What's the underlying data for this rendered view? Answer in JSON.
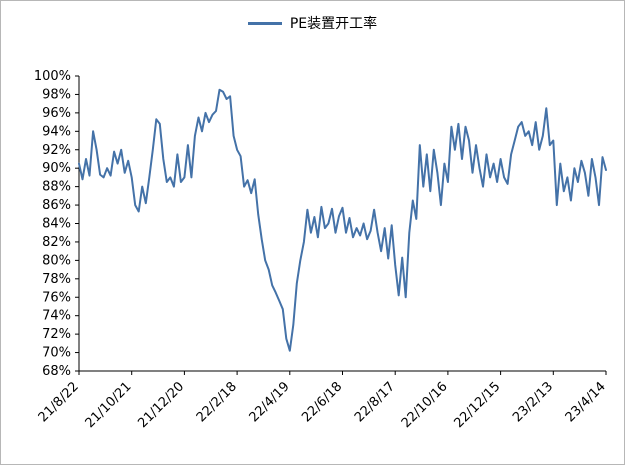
{
  "legend": {
    "label": "PE装置开工率"
  },
  "chart_data": {
    "type": "line",
    "title": "PE装置开工率",
    "series_name": "PE装置开工率",
    "series_color": "#4472A8",
    "axis_color": "#000000",
    "grid": false,
    "legend_position": "top-center",
    "ylim": [
      68,
      100
    ],
    "ytick_step": 2,
    "ytick_suffix": "%",
    "x_tick_labels": [
      "21/8/22",
      "21/10/21",
      "21/12/20",
      "22/2/18",
      "22/4/19",
      "22/6/18",
      "22/8/17",
      "22/10/16",
      "22/12/15",
      "23/2/13",
      "23/4/14"
    ],
    "x_tick_indices": [
      0,
      15,
      30,
      45,
      60,
      75,
      90,
      105,
      120,
      135,
      150
    ],
    "values": [
      90.5,
      88.8,
      91.0,
      89.2,
      94.0,
      92.0,
      89.3,
      89.0,
      90.0,
      89.2,
      91.8,
      90.5,
      92.0,
      89.5,
      90.8,
      89.0,
      86.0,
      85.3,
      88.0,
      86.2,
      89.0,
      92.0,
      95.3,
      94.8,
      91.0,
      88.5,
      89.0,
      88.0,
      91.5,
      88.5,
      89.0,
      92.5,
      89.0,
      93.5,
      95.5,
      94.0,
      96.0,
      95.0,
      95.8,
      96.2,
      98.5,
      98.3,
      97.5,
      97.8,
      93.5,
      92.0,
      91.3,
      88.0,
      88.7,
      87.3,
      88.8,
      85.0,
      82.3,
      80.0,
      79.0,
      77.3,
      76.5,
      75.6,
      74.7,
      71.5,
      70.2,
      73.0,
      77.5,
      80.0,
      82.0,
      85.5,
      83.0,
      84.7,
      82.5,
      85.8,
      83.5,
      84.0,
      85.6,
      83.0,
      84.8,
      85.7,
      83.0,
      84.6,
      82.5,
      83.5,
      82.7,
      84.0,
      82.3,
      83.2,
      85.5,
      83.0,
      81.0,
      83.5,
      80.2,
      83.8,
      79.5,
      76.2,
      80.3,
      76.0,
      83.0,
      86.5,
      84.5,
      92.5,
      88.0,
      91.5,
      87.5,
      92.0,
      89.5,
      86.0,
      90.5,
      88.5,
      94.5,
      92.0,
      94.8,
      91.0,
      94.5,
      93.0,
      89.5,
      92.5,
      90.0,
      88.0,
      91.5,
      89.0,
      90.5,
      88.5,
      91.0,
      89.0,
      88.3,
      91.5,
      93.0,
      94.5,
      95.0,
      93.5,
      94.0,
      92.5,
      95.0,
      92.0,
      93.5,
      96.5,
      92.5,
      93.0,
      86.0,
      90.5,
      87.5,
      89.0,
      86.5,
      90.0,
      88.5,
      90.8,
      89.5,
      87.0,
      91.0,
      89.0,
      86.0,
      91.2,
      89.8
    ]
  }
}
